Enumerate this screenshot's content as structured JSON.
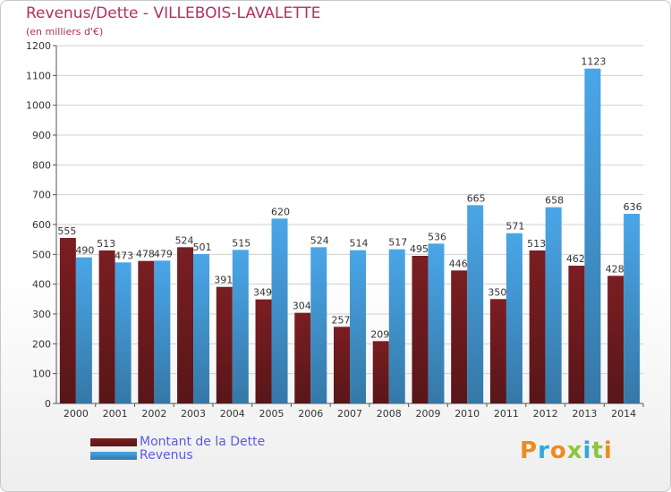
{
  "chart_data": {
    "type": "bar",
    "title": "Revenus/Dette - VILLEBOIS-LAVALETTE",
    "subtitle": "(en milliers d'€)",
    "xlabel": "",
    "ylabel": "",
    "ylim": [
      0,
      1200
    ],
    "yticks": [
      0,
      100,
      200,
      300,
      400,
      500,
      600,
      700,
      800,
      900,
      1000,
      1100,
      1200
    ],
    "grid": true,
    "categories": [
      "2000",
      "2001",
      "2002",
      "2003",
      "2004",
      "2005",
      "2006",
      "2007",
      "2008",
      "2009",
      "2010",
      "2011",
      "2012",
      "2013",
      "2014"
    ],
    "series": [
      {
        "name": "Montant de la Dette",
        "color": "#7a1e22",
        "values": [
          555,
          513,
          478,
          524,
          391,
          349,
          304,
          257,
          209,
          495,
          446,
          350,
          513,
          462,
          428
        ]
      },
      {
        "name": "Revenus",
        "color": "#4aa6e8",
        "values": [
          490,
          473,
          479,
          501,
          515,
          620,
          524,
          514,
          517,
          536,
          665,
          571,
          658,
          1123,
          636
        ]
      }
    ],
    "legend_position": "bottom-left"
  },
  "logo": {
    "letters": [
      "P",
      "r",
      "o",
      "x",
      "i",
      "t",
      "i"
    ],
    "colors": [
      "#f08a1e",
      "#2ea8e0",
      "#f08a1e",
      "#8cc63f",
      "#2ea8e0",
      "#8cc63f",
      "#f08a1e"
    ]
  }
}
